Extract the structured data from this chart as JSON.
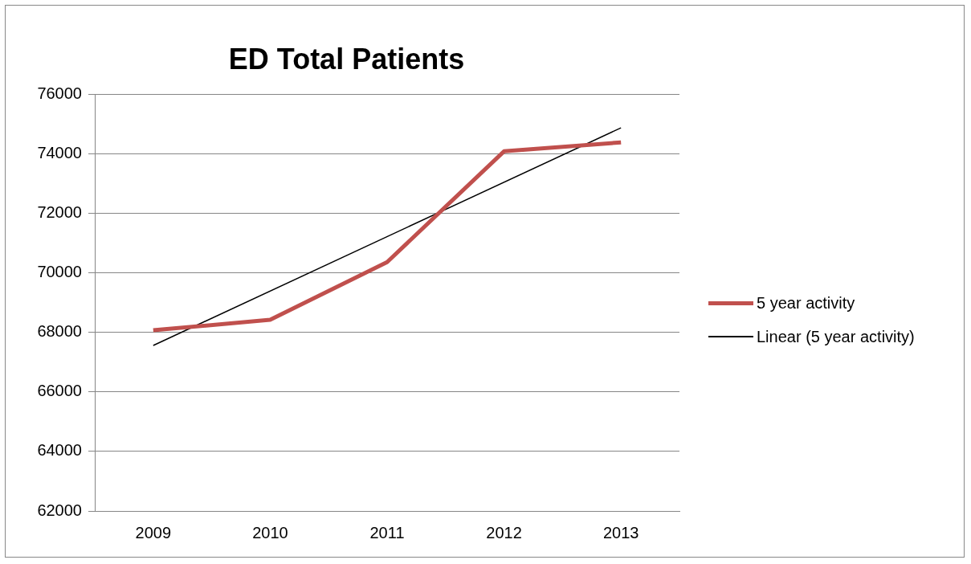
{
  "chart_data": {
    "type": "line",
    "title": "ED Total Patients",
    "x": [
      2009,
      2010,
      2011,
      2012,
      2013
    ],
    "xlim": [
      2008.5,
      2013.5
    ],
    "xticks": [
      2009,
      2010,
      2011,
      2012,
      2013
    ],
    "ylim": [
      62000,
      76000
    ],
    "yticks": [
      62000,
      64000,
      66000,
      68000,
      70000,
      72000,
      74000,
      76000
    ],
    "grid": "y",
    "legend": "right",
    "marker": "none",
    "series": [
      {
        "name": "5 year activity",
        "color": "#c0504d",
        "values": [
          68070,
          68420,
          70360,
          74080,
          74380
        ]
      },
      {
        "name": "Linear (5 year activity)",
        "color": "#000000",
        "x": [
          2009,
          2013
        ],
        "values": [
          67560,
          74870
        ]
      }
    ]
  }
}
